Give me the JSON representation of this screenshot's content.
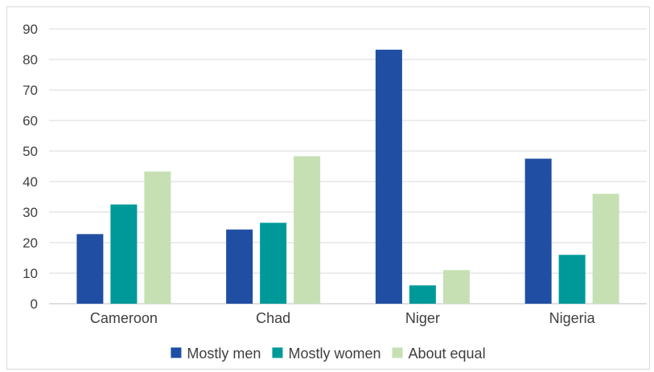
{
  "chart_data": {
    "type": "bar",
    "title": "",
    "xlabel": "",
    "ylabel": "",
    "categories": [
      "Cameroon",
      "Chad",
      "Niger",
      "Nigeria"
    ],
    "ylim": [
      0,
      90
    ],
    "yticks": [
      "0",
      "10",
      "20",
      "30",
      "40",
      "50",
      "60",
      "70",
      "80",
      "90"
    ],
    "grid": true,
    "legend_position": "bottom",
    "series": [
      {
        "name": "Mostly men",
        "color": "#1f4ea3",
        "values": [
          22.8,
          24.3,
          83.2,
          47.5
        ]
      },
      {
        "name": "Mostly women",
        "color": "#009999",
        "values": [
          32.5,
          26.5,
          6.0,
          16.0
        ]
      },
      {
        "name": "About equal",
        "color": "#c6e0b4",
        "values": [
          43.3,
          48.3,
          11.0,
          36.0
        ]
      }
    ]
  }
}
